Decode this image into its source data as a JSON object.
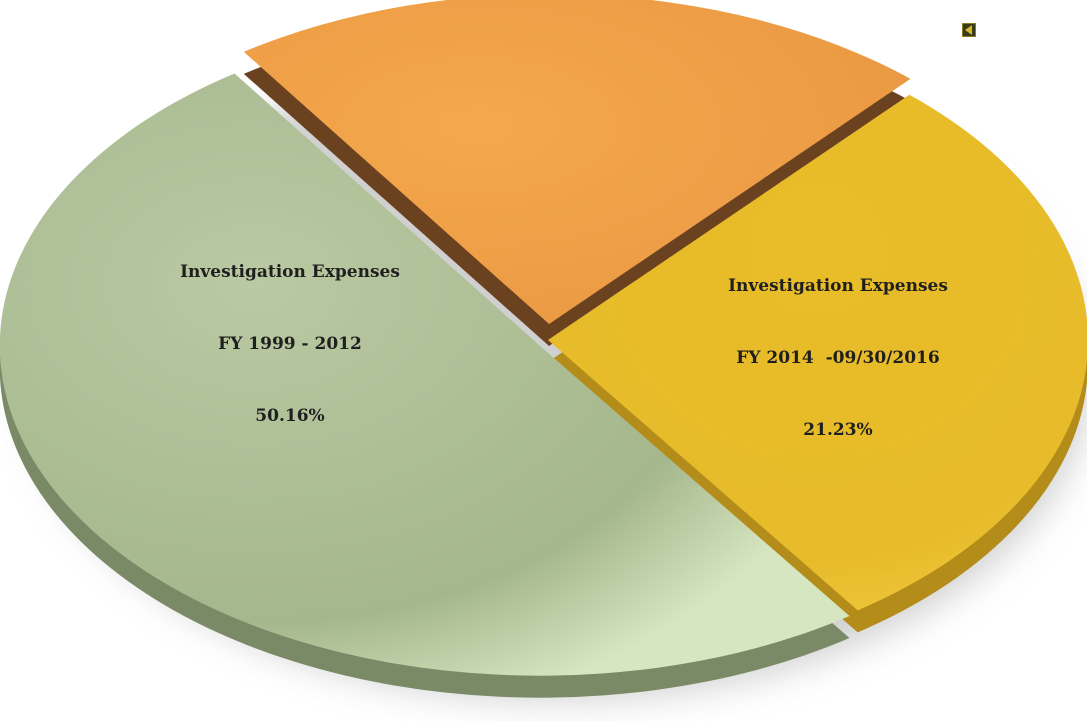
{
  "chart_data": {
    "type": "pie",
    "title": "",
    "slices": [
      {
        "label_lines": [
          "Investigation Expenses",
          "FY 1999 - 2012",
          "50.16%"
        ],
        "value": 50.16,
        "color": "#a9bb91"
      },
      {
        "label_lines": [
          "Investigation Expenses",
          "FY 2014  -09/30/2016",
          "21.23%"
        ],
        "value": 21.23,
        "color": "#efa04a"
      },
      {
        "label_lines": [],
        "value": 28.61,
        "color": "#e6bb2a"
      }
    ]
  },
  "nav": {
    "icon": "chevron-left-icon",
    "color": "#d4b72e"
  }
}
